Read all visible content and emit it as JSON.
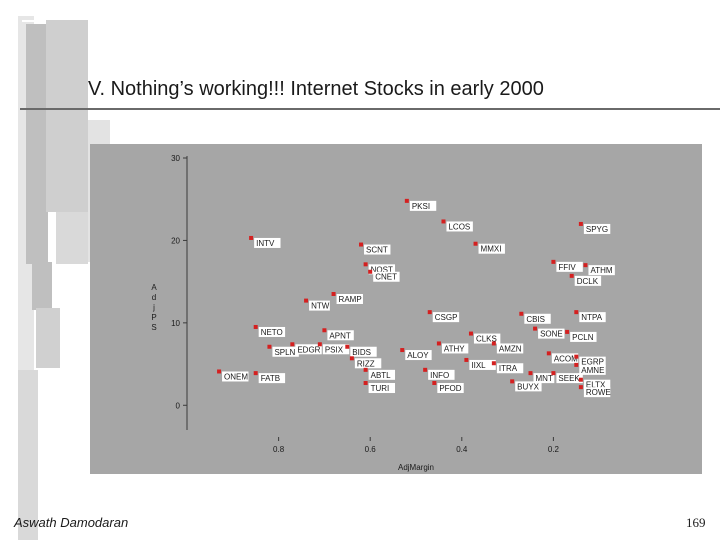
{
  "slide": {
    "title": "V. Nothing’s working!!! Internet Stocks in early 2000",
    "author": "Aswath Damodaran",
    "page_number": "169"
  },
  "colors": {
    "panel": "#a6a6a6",
    "marker": "#d42020",
    "label_bg": "#ffffff",
    "text": "#1a1a1a"
  },
  "chart_data": {
    "type": "scatter",
    "xlabel": "AdjMargin",
    "ylabel": "AdjPS",
    "x_reversed": true,
    "xlim": [
      1.0,
      0.0
    ],
    "ylim": [
      -3,
      30
    ],
    "x_ticks": [
      0.8,
      0.6,
      0.4,
      0.2
    ],
    "x_tick_labels": [
      "0.8",
      "0.6",
      "0.4",
      "0.2"
    ],
    "y_ticks": [
      0,
      10,
      20,
      30
    ],
    "y_tick_labels": [
      "0",
      "10",
      "20",
      "30"
    ],
    "grid": false,
    "points": [
      {
        "label": "PKSI",
        "x": 0.52,
        "y": 24.8
      },
      {
        "label": "LCOS",
        "x": 0.44,
        "y": 22.3
      },
      {
        "label": "SPYG",
        "x": 0.14,
        "y": 22.0
      },
      {
        "label": "INTV",
        "x": 0.86,
        "y": 20.3
      },
      {
        "label": "SCNT",
        "x": 0.62,
        "y": 19.5
      },
      {
        "label": "MMXI",
        "x": 0.37,
        "y": 19.6
      },
      {
        "label": "NQST",
        "x": 0.61,
        "y": 17.1
      },
      {
        "label": "CNET",
        "x": 0.6,
        "y": 16.2
      },
      {
        "label": "FFIV",
        "x": 0.2,
        "y": 17.4
      },
      {
        "label": "ATHM",
        "x": 0.13,
        "y": 17.0
      },
      {
        "label": "DCLK",
        "x": 0.16,
        "y": 15.7
      },
      {
        "label": "RAMP",
        "x": 0.68,
        "y": 13.5
      },
      {
        "label": "NTW",
        "x": 0.74,
        "y": 12.7
      },
      {
        "label": "CSGP",
        "x": 0.47,
        "y": 11.3
      },
      {
        "label": "CBIS",
        "x": 0.27,
        "y": 11.1
      },
      {
        "label": "NTPA",
        "x": 0.15,
        "y": 11.3
      },
      {
        "label": "NETO",
        "x": 0.85,
        "y": 9.5
      },
      {
        "label": "APNT",
        "x": 0.7,
        "y": 9.1
      },
      {
        "label": "SONE",
        "x": 0.24,
        "y": 9.3
      },
      {
        "label": "PCLN",
        "x": 0.17,
        "y": 8.9
      },
      {
        "label": "CLKS",
        "x": 0.38,
        "y": 8.7
      },
      {
        "label": "ATHY",
        "x": 0.45,
        "y": 7.5
      },
      {
        "label": "AMZN",
        "x": 0.33,
        "y": 7.5
      },
      {
        "label": "SPLN",
        "x": 0.82,
        "y": 7.1
      },
      {
        "label": "EDGR",
        "x": 0.77,
        "y": 7.4
      },
      {
        "label": "PSIX",
        "x": 0.71,
        "y": 7.4
      },
      {
        "label": "BIDS",
        "x": 0.65,
        "y": 7.1
      },
      {
        "label": "ALOY",
        "x": 0.53,
        "y": 6.7
      },
      {
        "label": "ACOM",
        "x": 0.21,
        "y": 6.3
      },
      {
        "label": "EGRP",
        "x": 0.15,
        "y": 5.9
      },
      {
        "label": "RIZZ",
        "x": 0.64,
        "y": 5.7
      },
      {
        "label": "IIXL",
        "x": 0.39,
        "y": 5.5
      },
      {
        "label": "ITRA",
        "x": 0.33,
        "y": 5.1
      },
      {
        "label": "AMNE",
        "x": 0.15,
        "y": 4.9
      },
      {
        "label": "ABTL",
        "x": 0.61,
        "y": 4.3
      },
      {
        "label": "INFO",
        "x": 0.48,
        "y": 4.3
      },
      {
        "label": "MNT",
        "x": 0.25,
        "y": 3.9
      },
      {
        "label": "SEEK",
        "x": 0.2,
        "y": 3.9
      },
      {
        "label": "ONEM",
        "x": 0.93,
        "y": 4.1
      },
      {
        "label": "FATB",
        "x": 0.85,
        "y": 3.9
      },
      {
        "label": "ELTX",
        "x": 0.14,
        "y": 3.1
      },
      {
        "label": "TURI",
        "x": 0.61,
        "y": 2.7
      },
      {
        "label": "PFOD",
        "x": 0.46,
        "y": 2.7
      },
      {
        "label": "BUYX",
        "x": 0.29,
        "y": 2.9
      },
      {
        "label": "ROWE",
        "x": 0.14,
        "y": 2.2
      }
    ]
  }
}
